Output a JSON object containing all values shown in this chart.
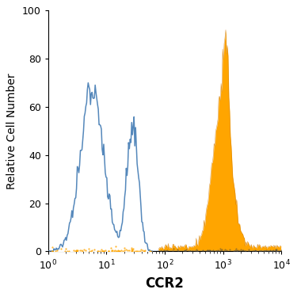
{
  "title": "",
  "xlabel": "CCR2",
  "ylabel": "Relative Cell Number",
  "xlim_log": [
    0,
    4
  ],
  "ylim": [
    0,
    100
  ],
  "yticks": [
    0,
    20,
    40,
    60,
    80,
    100
  ],
  "filled_color": "#FFA500",
  "filled_edge_color": "#cc7700",
  "open_color": "#5588bb",
  "background_color": "#ffffff",
  "xlabel_fontsize": 12,
  "ylabel_fontsize": 10,
  "tick_fontsize": 9,
  "open_peak_log": 0.78,
  "open_peak2_log": 1.48,
  "filled_peak_log": 3.0,
  "open_max": 70,
  "filled_max": 92,
  "n_bins": 300,
  "seed": 7
}
